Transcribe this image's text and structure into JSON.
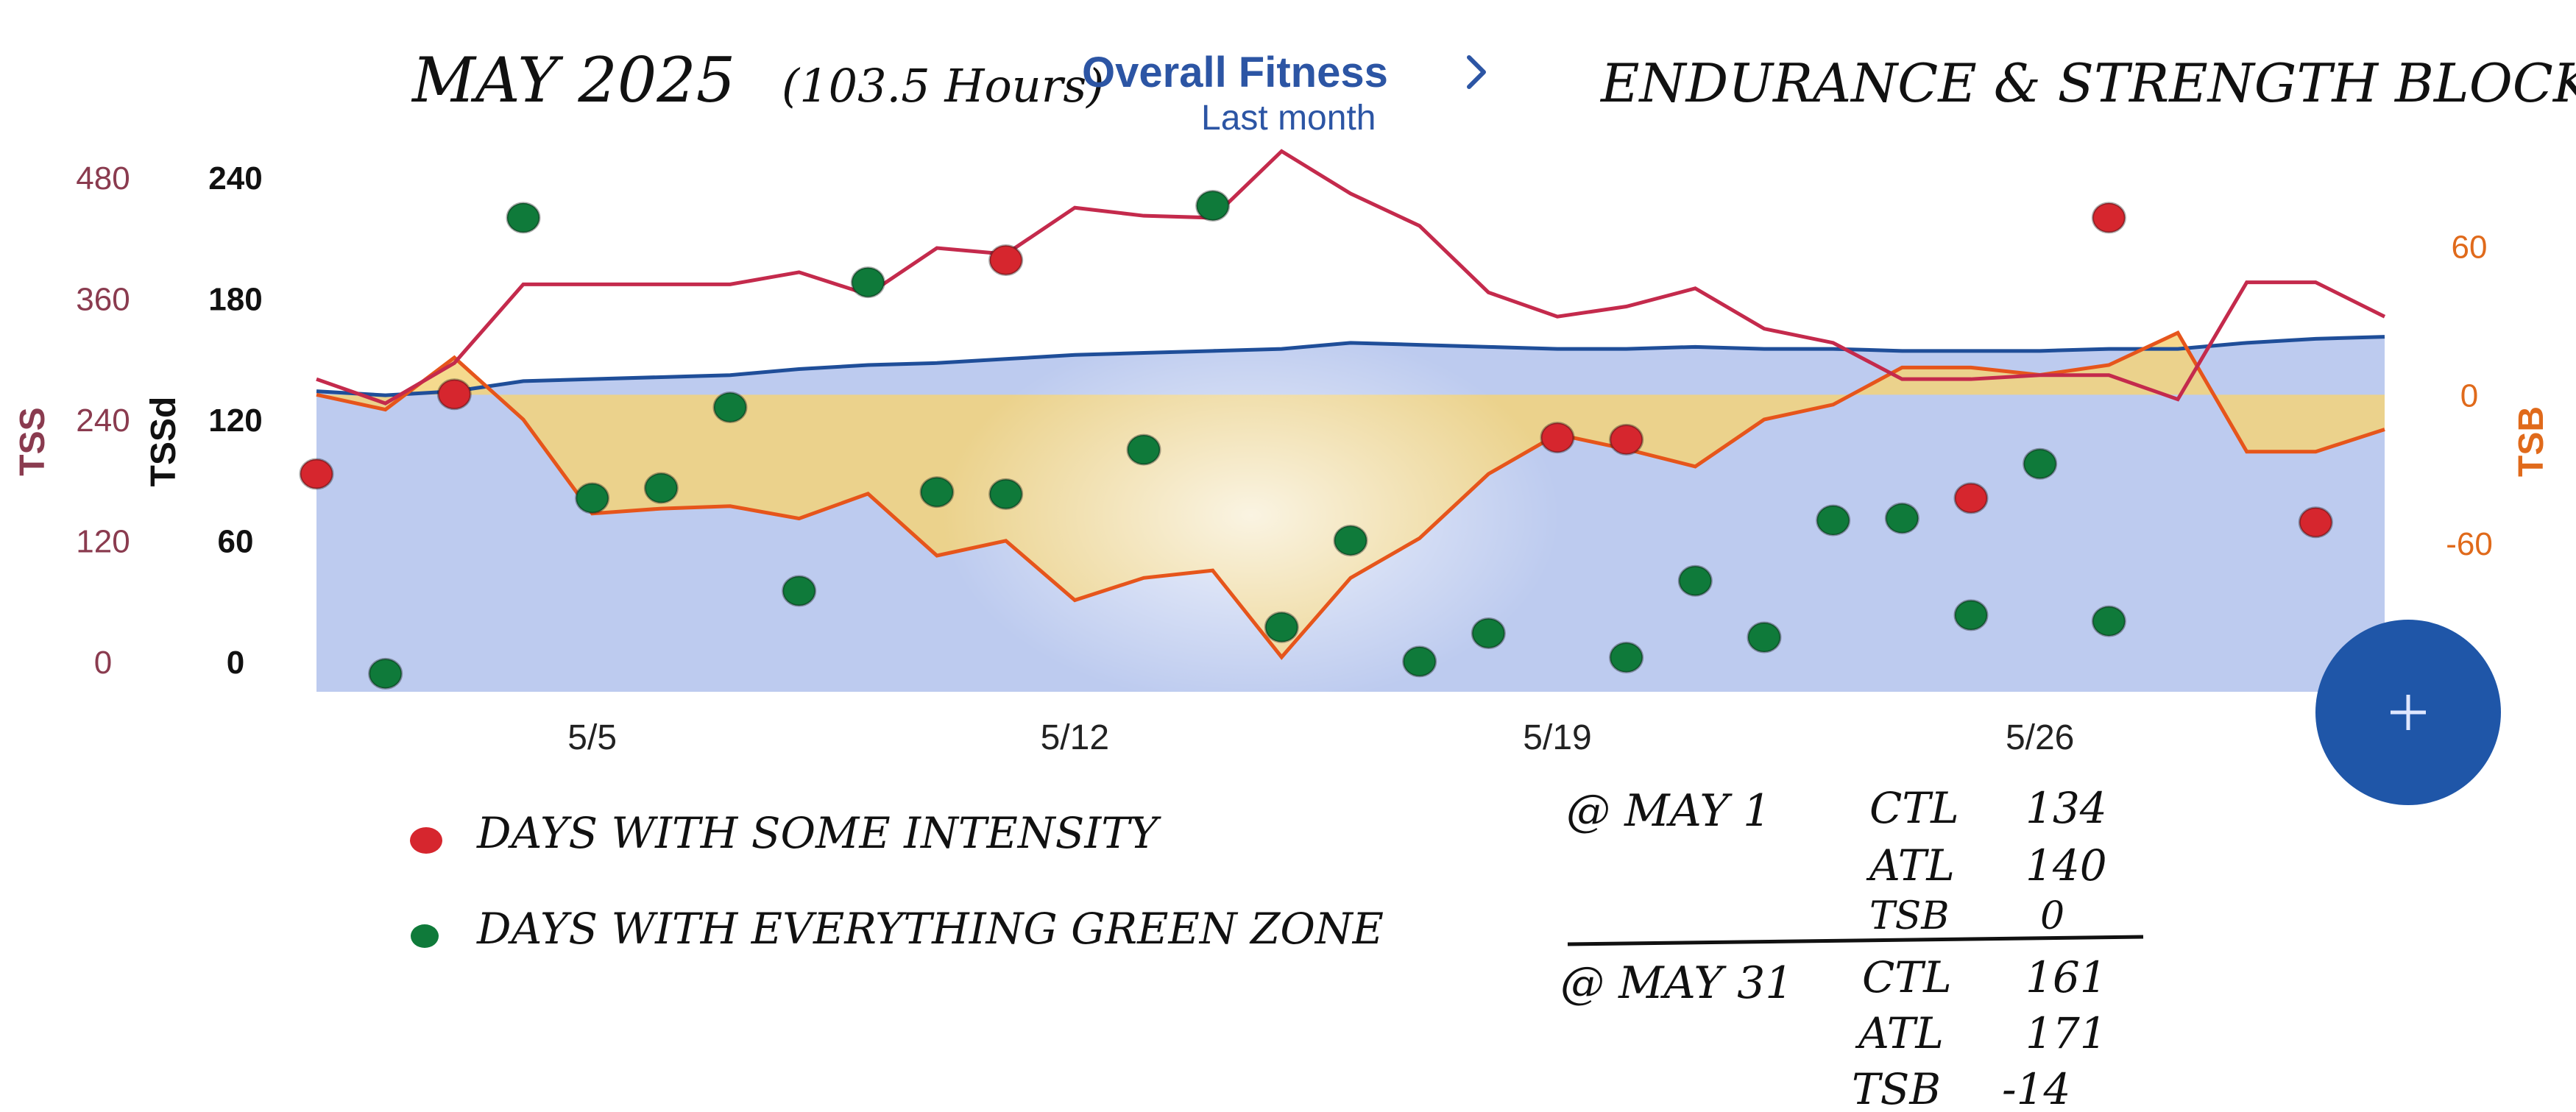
{
  "handwritten": {
    "title_left": "MAY 2025",
    "title_hours": "(103.5 Hours)",
    "title_right": "ENDURANCE & STRENGTH BLOCK"
  },
  "header": {
    "title": "Overall Fitness",
    "subtitle": "Last month",
    "chevron_icon": "chevron-right-icon"
  },
  "fab": {
    "icon": "plus-icon",
    "color": "#1f56a8"
  },
  "legend": {
    "items": [
      {
        "label": "DAYS WITH SOME INTENSITY",
        "color": "#d6262e"
      },
      {
        "label": "DAYS WITH EVERYTHING GREEN ZONE",
        "color": "#0f7a3a"
      }
    ]
  },
  "notes": {
    "may1": {
      "label": "@ MAY 1",
      "rows": [
        [
          "CTL",
          "134"
        ],
        [
          "ATL",
          "140"
        ],
        [
          "TSB",
          "0"
        ]
      ]
    },
    "may31": {
      "label": "@ MAY 31",
      "rows": [
        [
          "CTL",
          "161"
        ],
        [
          "ATL",
          "171"
        ],
        [
          "TSB",
          "-14"
        ]
      ]
    }
  },
  "chart_data": {
    "type": "line",
    "x": [
      "5/1",
      "5/2",
      "5/3",
      "5/4",
      "5/5",
      "5/6",
      "5/7",
      "5/8",
      "5/9",
      "5/10",
      "5/11",
      "5/12",
      "5/13",
      "5/14",
      "5/15",
      "5/16",
      "5/17",
      "5/18",
      "5/19",
      "5/20",
      "5/21",
      "5/22",
      "5/23",
      "5/24",
      "5/25",
      "5/26",
      "5/27",
      "5/28",
      "5/29",
      "5/30",
      "5/31"
    ],
    "x_ticks": [
      {
        "at": "5/5",
        "label": "5/5"
      },
      {
        "at": "5/12",
        "label": "5/12"
      },
      {
        "at": "5/19",
        "label": "5/19"
      },
      {
        "at": "5/26",
        "label": "5/26"
      }
    ],
    "axes": {
      "tss": {
        "label": "TSS",
        "ticks": [
          0,
          120,
          240,
          360,
          480
        ],
        "range": [
          -30,
          510
        ],
        "color": "#8a3b4f"
      },
      "tssd": {
        "label": "TSSd",
        "ticks": [
          0,
          60,
          120,
          180,
          240
        ],
        "range": [
          -15,
          255
        ],
        "color": "#111111"
      },
      "tsb": {
        "label": "TSB",
        "ticks": [
          -60,
          0,
          60
        ],
        "range": [
          -120,
          100
        ],
        "color": "#e06a1b"
      }
    },
    "series": [
      {
        "name": "CTL",
        "axis": "tssd",
        "style": "area",
        "color": "#1f4e99",
        "fill": "#b9c8ee",
        "values": [
          134,
          132,
          134,
          139,
          140,
          141,
          142,
          145,
          147,
          148,
          150,
          152,
          153,
          154,
          155,
          158,
          157,
          156,
          155,
          155,
          156,
          155,
          155,
          154,
          154,
          154,
          155,
          155,
          158,
          160,
          161
        ]
      },
      {
        "name": "ATL",
        "axis": "tssd",
        "style": "line",
        "color": "#c42a4c",
        "values": [
          140,
          128,
          148,
          187,
          187,
          187,
          187,
          193,
          182,
          205,
          202,
          225,
          221,
          220,
          253,
          232,
          216,
          183,
          171,
          176,
          185,
          165,
          158,
          140,
          140,
          142,
          142,
          130,
          188,
          188,
          171
        ]
      },
      {
        "name": "TSB",
        "axis": "tsb",
        "style": "line",
        "color": "#e6551b",
        "fill": "#f3d37a",
        "values": [
          0,
          -6,
          15,
          -10,
          -48,
          -46,
          -45,
          -50,
          -40,
          -65,
          -59,
          -83,
          -74,
          -71,
          -106,
          -74,
          -58,
          -32,
          -16,
          -22,
          -29,
          -10,
          -4,
          11,
          11,
          8,
          12,
          25,
          -23,
          -23,
          -14
        ]
      },
      {
        "name": "Days With Some Intensity",
        "axis": "tss",
        "style": "points",
        "color": "#d6262e",
        "points": [
          [
            0,
            186
          ],
          [
            2,
            265
          ],
          [
            10,
            398
          ],
          [
            18,
            222
          ],
          [
            19,
            220
          ],
          [
            24,
            162
          ],
          [
            26,
            440
          ],
          [
            29,
            138
          ]
        ]
      },
      {
        "name": "Days With Everything Green Zone",
        "axis": "tss",
        "style": "points",
        "color": "#0f7a3a",
        "points": [
          [
            1,
            -12
          ],
          [
            3,
            440
          ],
          [
            4,
            162
          ],
          [
            5,
            172
          ],
          [
            6,
            252
          ],
          [
            7,
            70
          ],
          [
            8,
            376
          ],
          [
            9,
            168
          ],
          [
            10,
            166
          ],
          [
            12,
            210
          ],
          [
            13,
            452
          ],
          [
            14,
            34
          ],
          [
            15,
            120
          ],
          [
            16,
            0
          ],
          [
            17,
            28
          ],
          [
            19,
            4
          ],
          [
            20,
            80
          ],
          [
            21,
            24
          ],
          [
            22,
            140
          ],
          [
            23,
            142
          ],
          [
            24,
            46
          ],
          [
            25,
            196
          ],
          [
            26,
            40
          ]
        ]
      }
    ]
  }
}
